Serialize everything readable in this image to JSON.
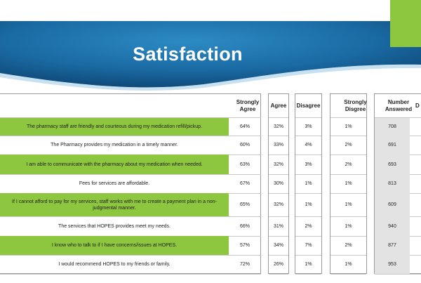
{
  "slide": {
    "title": "Satisfaction"
  },
  "colors": {
    "banner_dark": "#0b3f6b",
    "banner_light": "#2d8bc4",
    "accent": "#8dc63f",
    "shaded": "#e3e3e3"
  },
  "table": {
    "columns": [
      "Strongly Agree",
      "Agree",
      "Disagree",
      "Strongly Disgree",
      "Number Answered",
      "D"
    ],
    "rows": [
      {
        "question": "The pharmacy staff are friendly and courteous during my medication refill/pickup.",
        "strongly_agree": "64%",
        "agree": "32%",
        "disagree": "3%",
        "strongly_disagree": "1%",
        "answered": "708",
        "highlight": true
      },
      {
        "question": "The Pharmacy provides my medication in a timely manner.",
        "strongly_agree": "60%",
        "agree": "33%",
        "disagree": "4%",
        "strongly_disagree": "2%",
        "answered": "691",
        "highlight": false
      },
      {
        "question": "I am able to communicate with the pharmacy about my medication when needed.",
        "strongly_agree": "63%",
        "agree": "32%",
        "disagree": "3%",
        "strongly_disagree": "2%",
        "answered": "693",
        "highlight": true
      },
      {
        "question": "Fees for services are affordable.",
        "strongly_agree": "67%",
        "agree": "30%",
        "disagree": "1%",
        "strongly_disagree": "1%",
        "answered": "813",
        "highlight": false
      },
      {
        "question": "If I cannot afford to pay for my services, staff works with me to create a payment plan in a non-judgmental manner.",
        "strongly_agree": "65%",
        "agree": "32%",
        "disagree": "1%",
        "strongly_disagree": "1%",
        "answered": "609",
        "highlight": true
      },
      {
        "question": "The services that HOPES provides meet my needs.",
        "strongly_agree": "66%",
        "agree": "31%",
        "disagree": "2%",
        "strongly_disagree": "1%",
        "answered": "940",
        "highlight": false
      },
      {
        "question": "I know who to talk to if I have concerns/issues at HOPES.",
        "strongly_agree": "57%",
        "agree": "34%",
        "disagree": "7%",
        "strongly_disagree": "2%",
        "answered": "877",
        "highlight": true
      },
      {
        "question": "I would recommend HOPES to my friends or family.",
        "strongly_agree": "72%",
        "agree": "26%",
        "disagree": "1%",
        "strongly_disagree": "1%",
        "answered": "953",
        "highlight": false
      }
    ]
  }
}
